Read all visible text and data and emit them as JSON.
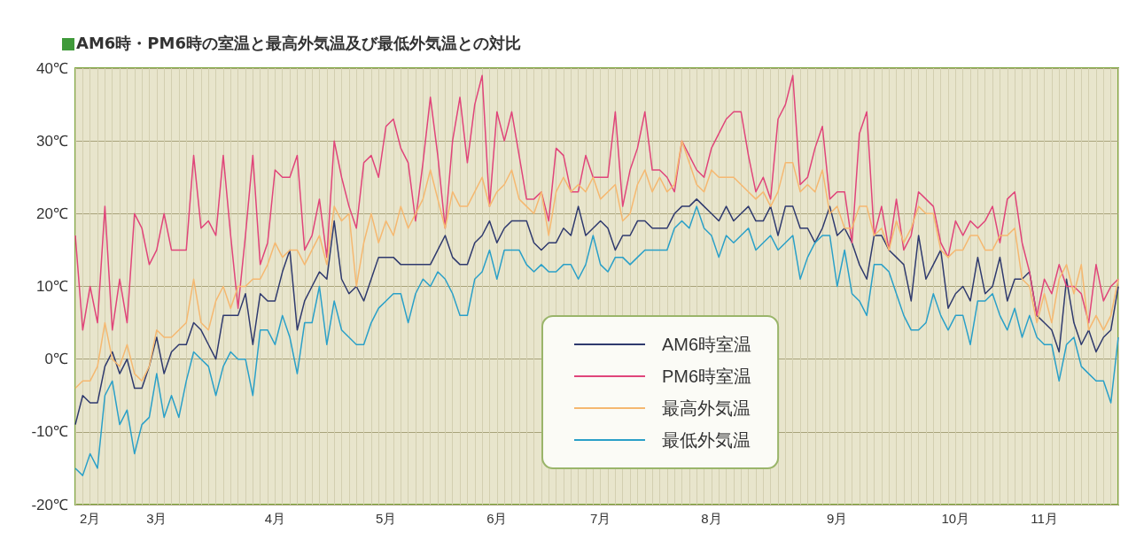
{
  "chart_data": {
    "type": "line",
    "title": "AM6時・PM6時の室温と最高外気温及び最低外気温との対比",
    "categories": [
      null,
      null,
      "2月",
      null,
      null,
      null,
      null,
      null,
      null,
      null,
      null,
      "3月",
      null,
      null,
      null,
      null,
      null,
      null,
      null,
      null,
      null,
      null,
      null,
      null,
      null,
      null,
      null,
      "4月",
      null,
      null,
      null,
      null,
      null,
      null,
      null,
      null,
      null,
      null,
      null,
      null,
      null,
      null,
      "5月",
      null,
      null,
      null,
      null,
      null,
      null,
      null,
      null,
      null,
      null,
      null,
      null,
      null,
      null,
      "6月",
      null,
      null,
      null,
      null,
      null,
      null,
      null,
      null,
      null,
      null,
      null,
      null,
      null,
      "7月",
      null,
      null,
      null,
      null,
      null,
      null,
      null,
      null,
      null,
      null,
      null,
      null,
      null,
      null,
      "8月",
      null,
      null,
      null,
      null,
      null,
      null,
      null,
      null,
      null,
      null,
      null,
      null,
      null,
      null,
      null,
      null,
      "9月",
      null,
      null,
      null,
      null,
      null,
      null,
      null,
      null,
      null,
      null,
      null,
      null,
      null,
      null,
      null,
      "10月",
      null,
      null,
      null,
      null,
      null,
      null,
      null,
      null,
      null,
      null,
      null,
      "11月",
      null,
      null,
      null,
      null,
      null,
      null,
      null,
      null,
      null,
      null
    ],
    "series": [
      {
        "name": "AM6時室温",
        "color": "#2f3a6e",
        "values": [
          -9,
          -5,
          -6,
          -6,
          -1,
          1,
          -2,
          0,
          -4,
          -4,
          -1,
          3,
          -2,
          1,
          2,
          2,
          5,
          4,
          2,
          0,
          6,
          6,
          6,
          9,
          2,
          9,
          8,
          8,
          12,
          15,
          4,
          8,
          10,
          12,
          11,
          19,
          11,
          9,
          10,
          8,
          11,
          14,
          14,
          14,
          13,
          13,
          13,
          13,
          13,
          15,
          17,
          14,
          13,
          13,
          16,
          17,
          19,
          16,
          18,
          19,
          19,
          19,
          16,
          15,
          16,
          16,
          18,
          17,
          21,
          17,
          18,
          19,
          18,
          15,
          17,
          17,
          19,
          19,
          18,
          18,
          18,
          20,
          21,
          21,
          22,
          21,
          20,
          19,
          21,
          19,
          20,
          21,
          19,
          19,
          21,
          17,
          21,
          21,
          18,
          18,
          16,
          18,
          21,
          17,
          18,
          16,
          13,
          11,
          17,
          17,
          15,
          14,
          13,
          8,
          17,
          11,
          13,
          15,
          7,
          9,
          10,
          8,
          14,
          9,
          10,
          14,
          8,
          11,
          11,
          12,
          6,
          5,
          4,
          1,
          11,
          5,
          2,
          4,
          1,
          3,
          4,
          10
        ]
      },
      {
        "name": "PM6時室温",
        "color": "#e0457a",
        "values": [
          17,
          4,
          10,
          5,
          21,
          4,
          11,
          5,
          20,
          18,
          13,
          15,
          20,
          15,
          15,
          15,
          28,
          18,
          19,
          17,
          28,
          17,
          7,
          17,
          28,
          13,
          16,
          26,
          25,
          25,
          28,
          15,
          17,
          22,
          14,
          30,
          25,
          21,
          18,
          27,
          28,
          25,
          32,
          33,
          29,
          27,
          19,
          27,
          36,
          28,
          18,
          30,
          36,
          27,
          35,
          39,
          21,
          34,
          30,
          34,
          28,
          22,
          22,
          23,
          19,
          29,
          28,
          23,
          23,
          28,
          25,
          25,
          25,
          34,
          21,
          26,
          29,
          34,
          26,
          26,
          25,
          23,
          30,
          28,
          26,
          25,
          29,
          31,
          33,
          34,
          34,
          28,
          23,
          25,
          22,
          33,
          35,
          39,
          24,
          25,
          29,
          32,
          22,
          23,
          23,
          16,
          31,
          34,
          17,
          21,
          15,
          22,
          15,
          17,
          23,
          22,
          21,
          16,
          14,
          19,
          17,
          19,
          18,
          19,
          21,
          16,
          22,
          23,
          16,
          12,
          6,
          11,
          9,
          13,
          10,
          10,
          9,
          5,
          13,
          8,
          10,
          11
        ]
      },
      {
        "name": "最高外気温",
        "color": "#f5b870",
        "values": [
          -4,
          -3,
          -3,
          -1,
          5,
          0,
          -1,
          2,
          -2,
          -3,
          -1,
          4,
          3,
          3,
          4,
          5,
          11,
          5,
          4,
          8,
          10,
          7,
          10,
          10,
          11,
          11,
          13,
          16,
          14,
          15,
          15,
          13,
          15,
          17,
          13,
          21,
          19,
          20,
          10,
          16,
          20,
          16,
          19,
          17,
          21,
          18,
          20,
          22,
          26,
          22,
          18,
          23,
          21,
          21,
          23,
          25,
          21,
          23,
          24,
          26,
          22,
          21,
          20,
          23,
          17,
          23,
          25,
          23,
          24,
          23,
          25,
          22,
          23,
          24,
          19,
          20,
          24,
          26,
          23,
          25,
          23,
          24,
          30,
          27,
          24,
          23,
          26,
          25,
          25,
          25,
          24,
          23,
          22,
          23,
          21,
          23,
          27,
          27,
          23,
          24,
          23,
          26,
          20,
          21,
          18,
          18,
          21,
          21,
          17,
          18,
          15,
          19,
          16,
          18,
          21,
          20,
          20,
          15,
          14,
          15,
          15,
          17,
          17,
          15,
          15,
          17,
          17,
          18,
          11,
          10,
          5,
          9,
          5,
          11,
          13,
          9,
          13,
          4,
          6,
          4,
          6,
          11
        ]
      },
      {
        "name": "最低外気温",
        "color": "#2aa0c8",
        "values": [
          -15,
          -16,
          -13,
          -15,
          -5,
          -3,
          -9,
          -7,
          -13,
          -9,
          -8,
          -2,
          -8,
          -5,
          -8,
          -3,
          1,
          0,
          -1,
          -5,
          -1,
          1,
          0,
          0,
          -5,
          4,
          4,
          2,
          6,
          3,
          -2,
          5,
          5,
          10,
          2,
          8,
          4,
          3,
          2,
          2,
          5,
          7,
          8,
          9,
          9,
          5,
          9,
          11,
          10,
          12,
          11,
          9,
          6,
          6,
          11,
          12,
          15,
          11,
          15,
          15,
          15,
          13,
          12,
          13,
          12,
          12,
          13,
          13,
          11,
          13,
          17,
          13,
          12,
          14,
          14,
          13,
          14,
          15,
          15,
          15,
          15,
          18,
          19,
          18,
          21,
          18,
          17,
          14,
          17,
          16,
          17,
          18,
          15,
          16,
          17,
          15,
          16,
          17,
          11,
          14,
          16,
          17,
          17,
          10,
          15,
          9,
          8,
          6,
          13,
          13,
          12,
          9,
          6,
          4,
          4,
          5,
          9,
          6,
          4,
          6,
          6,
          2,
          8,
          8,
          9,
          6,
          4,
          7,
          3,
          6,
          3,
          2,
          2,
          -3,
          2,
          3,
          -1,
          -2,
          -3,
          -3,
          -6,
          3
        ]
      }
    ],
    "ylim": [
      -20,
      40
    ],
    "yticks": [
      {
        "value": -20,
        "label": "-20℃"
      },
      {
        "value": -10,
        "label": "-10℃"
      },
      {
        "value": 0,
        "label": "0℃"
      },
      {
        "value": 10,
        "label": "10℃"
      },
      {
        "value": 20,
        "label": "20℃"
      },
      {
        "value": 30,
        "label": "30℃"
      },
      {
        "value": 40,
        "label": "40℃"
      }
    ],
    "grid": true,
    "legend": "bottom",
    "marker": "none",
    "line_style": "solid"
  }
}
